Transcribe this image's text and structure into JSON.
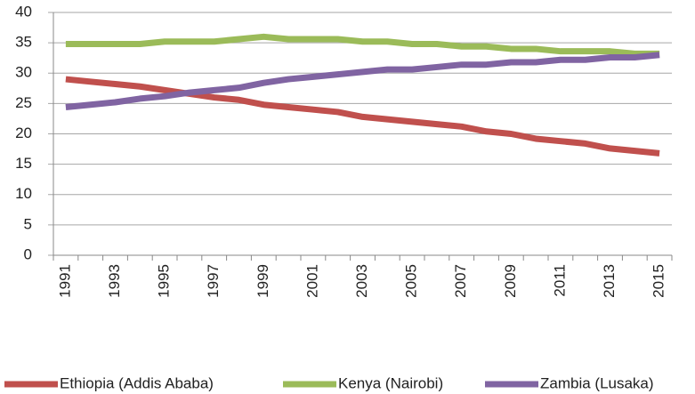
{
  "chart_data": {
    "type": "line",
    "categories": [
      "1991",
      null,
      "1993",
      null,
      "1995",
      null,
      "1997",
      null,
      "1999",
      null,
      "2001",
      null,
      "2003",
      null,
      "2005",
      null,
      "2007",
      null,
      "2009",
      null,
      "2011",
      null,
      "2013",
      null,
      "2015"
    ],
    "series": [
      {
        "name": "Ethiopia (Addis Ababa)",
        "color": "#c0504d",
        "values": [
          29,
          28.6,
          28.2,
          27.8,
          27.2,
          26.6,
          26,
          25.6,
          24.8,
          24.4,
          24,
          23.6,
          22.8,
          22.4,
          22,
          21.6,
          21.2,
          20.4,
          20,
          19.2,
          18.8,
          18.4,
          17.6,
          17.2,
          16.8
        ]
      },
      {
        "name": "Kenya (Nairobi)",
        "color": "#9bbb59",
        "values": [
          34.8,
          34.8,
          34.8,
          34.8,
          35.2,
          35.2,
          35.2,
          35.6,
          36,
          35.6,
          35.6,
          35.6,
          35.2,
          35.2,
          34.8,
          34.8,
          34.4,
          34.4,
          34,
          34,
          33.6,
          33.6,
          33.6,
          33.2,
          33.2
        ]
      },
      {
        "name": "Zambia (Lusaka)",
        "color": "#8064a2",
        "values": [
          24.4,
          24.8,
          25.2,
          25.8,
          26.2,
          26.8,
          27.2,
          27.6,
          28.4,
          29,
          29.4,
          29.8,
          30.2,
          30.6,
          30.6,
          31,
          31.4,
          31.4,
          31.8,
          31.8,
          32.2,
          32.2,
          32.6,
          32.6,
          33
        ]
      }
    ],
    "ylim": [
      0,
      40
    ],
    "yticks": [
      0,
      5,
      10,
      15,
      20,
      25,
      30,
      35,
      40
    ],
    "grid": true,
    "legend": "bottom"
  }
}
